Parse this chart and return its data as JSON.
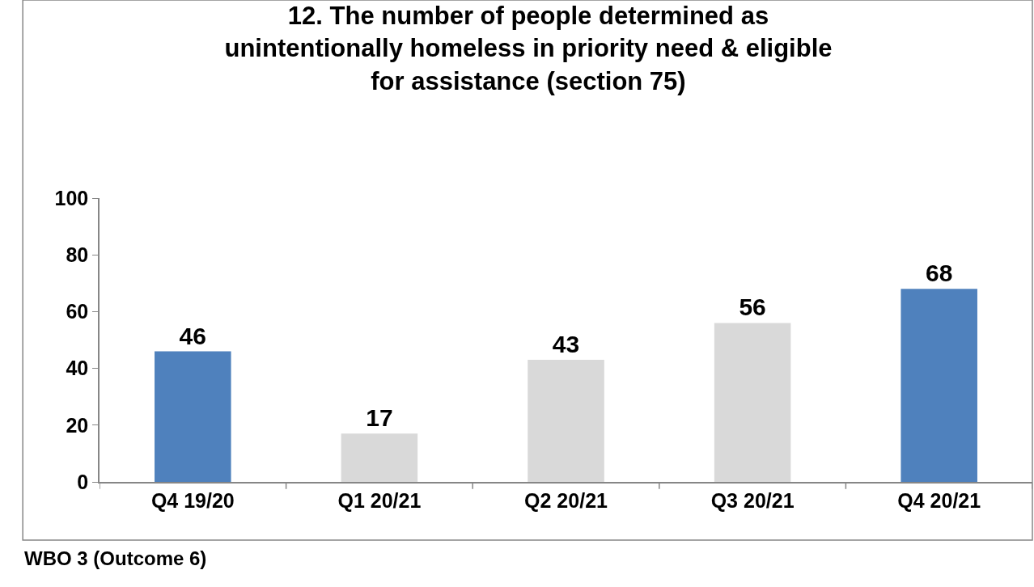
{
  "chart_data": {
    "type": "bar",
    "title": "12. The number of people determined as\nunintentionally homeless in priority need & eligible\nfor assistance (section 75)",
    "categories": [
      "Q4 19/20",
      "Q1 20/21",
      "Q2 20/21",
      "Q3 20/21",
      "Q4 20/21"
    ],
    "values": [
      46,
      17,
      43,
      56,
      68
    ],
    "colors": [
      "#4f81bd",
      "#d9d9d9",
      "#d9d9d9",
      "#d9d9d9",
      "#4f81bd"
    ],
    "ylim": [
      0,
      100
    ],
    "yticks": [
      0,
      20,
      40,
      60,
      80,
      100
    ],
    "grid": false,
    "legend": false,
    "data_labels": true,
    "annotations": [
      "WBO 3 (Outcome 6)"
    ]
  }
}
